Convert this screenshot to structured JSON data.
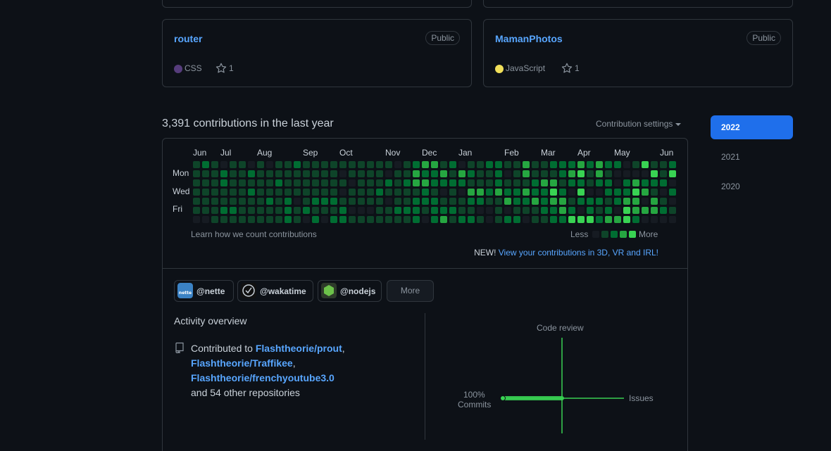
{
  "pinned": [
    {
      "name": "router",
      "visibility": "Public",
      "language": "CSS",
      "language_color": "#563d7c",
      "stars": "1"
    },
    {
      "name": "MamanPhotos",
      "visibility": "Public",
      "language": "JavaScript",
      "language_color": "#f1e05a",
      "stars": "1"
    }
  ],
  "contributions": {
    "heading": "3,391 contributions in the last year",
    "settings_label": "Contribution settings",
    "months": [
      "Jun",
      "Jul",
      "Aug",
      "Sep",
      "Oct",
      "Nov",
      "Dec",
      "Jan",
      "Feb",
      "Mar",
      "Apr",
      "May",
      "Jun"
    ],
    "days": [
      "Mon",
      "Wed",
      "Fri"
    ],
    "learn_link": "Learn how we count contributions",
    "legend_less": "Less",
    "legend_more": "More",
    "level_colors": [
      "#161b22",
      "#0e4429",
      "#006d32",
      "#26a641",
      "#39d353"
    ],
    "new_prefix": "NEW!",
    "new_link": "View your contributions in 3D, VR and IRL!"
  },
  "years": [
    "2022",
    "2021",
    "2020"
  ],
  "active_year": "2022",
  "orgs": [
    {
      "handle": "@nette",
      "avatar_color": "#3b82c4"
    },
    {
      "handle": "@wakatime",
      "avatar_color": "#111111"
    },
    {
      "handle": "@nodejs",
      "avatar_color": "#6cc24a"
    }
  ],
  "more_label": "More",
  "activity": {
    "title": "Activity overview",
    "prefix": "Contributed to",
    "repo1": "Flashtheorie/prout",
    "repo2": "Flashtheorie/Traffikee",
    "repo3": "Flashtheorie/frenchyoutube3.0",
    "suffix": "and 54 other repositories",
    "axis": {
      "top": "Code review",
      "right": "Issues",
      "left_pct": "100%",
      "left": "Commits"
    }
  }
}
